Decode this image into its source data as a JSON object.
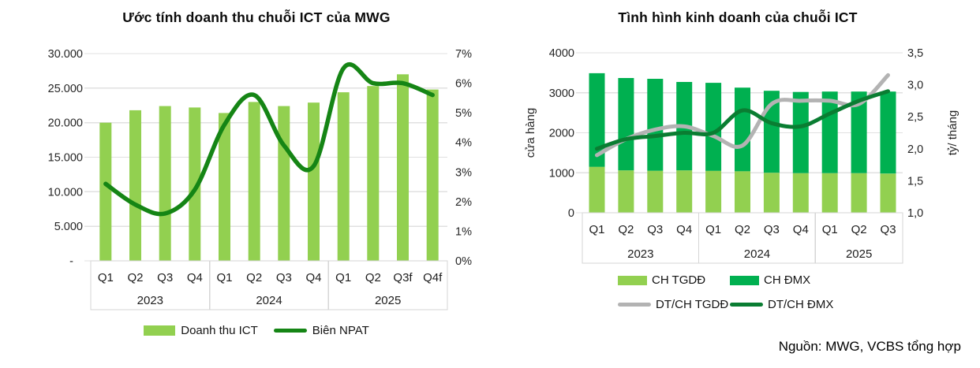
{
  "page": {
    "source_note": "Nguồn: MWG, VCBS tổng hợp"
  },
  "colors": {
    "bar_light_green": "#92D050",
    "bar_green": "#00B050",
    "line_dark_green": "#158515",
    "line_forest_green": "#0A7D32",
    "line_gray": "#B3B3B3",
    "grid": "#E0E0E0",
    "strip_border": "#D6D6D6",
    "axis_text": "#262626"
  },
  "chart_data": [
    {
      "type": "bar",
      "title": "Ước tính doanh thu chuỗi ICT của MWG",
      "categories": [
        "Q1",
        "Q2",
        "Q3",
        "Q4",
        "Q1",
        "Q2",
        "Q3",
        "Q4",
        "Q1",
        "Q2",
        "Q3f",
        "Q4f"
      ],
      "year_groups": [
        {
          "label": "2023",
          "count": 4
        },
        {
          "label": "2024",
          "count": 4
        },
        {
          "label": "2025",
          "count": 4
        }
      ],
      "series": [
        {
          "name": "Doanh thu ICT",
          "type": "bar",
          "axis": "left",
          "color_key": "bar_light_green",
          "values": [
            20000,
            21800,
            22400,
            22200,
            21400,
            23000,
            22400,
            22900,
            24400,
            25300,
            27000,
            24800
          ]
        },
        {
          "name": "Biên NPAT",
          "type": "line",
          "axis": "right",
          "color_key": "line_dark_green",
          "values": [
            2.6,
            1.9,
            1.6,
            2.4,
            4.6,
            5.6,
            3.9,
            3.2,
            6.5,
            6.0,
            6.0,
            5.6
          ]
        }
      ],
      "y_left": {
        "min": 0,
        "max": 30000,
        "step": 5000,
        "tick_labels": [
          "-",
          "5.000",
          "10.000",
          "15.000",
          "20.000",
          "25.000",
          "30.000"
        ]
      },
      "y_right": {
        "min": 0,
        "max": 7,
        "step": 1,
        "tick_labels": [
          "0%",
          "1%",
          "2%",
          "3%",
          "4%",
          "5%",
          "6%",
          "7%"
        ]
      },
      "ylabel_left": "",
      "ylabel_right": "",
      "legend_position": "bottom",
      "grid": true
    },
    {
      "type": "stacked-bar",
      "title": "Tình hình kinh doanh của chuỗi ICT",
      "categories": [
        "Q1",
        "Q2",
        "Q3",
        "Q4",
        "Q1",
        "Q2",
        "Q3",
        "Q4",
        "Q1",
        "Q2",
        "Q3"
      ],
      "year_groups": [
        {
          "label": "2023",
          "count": 4
        },
        {
          "label": "2024",
          "count": 4
        },
        {
          "label": "2025",
          "count": 3
        }
      ],
      "series": [
        {
          "name": "CH TGDĐ",
          "type": "bar",
          "stack": true,
          "axis": "left",
          "color_key": "bar_light_green",
          "values": [
            1150,
            1060,
            1050,
            1060,
            1050,
            1040,
            1000,
            990,
            990,
            990,
            980
          ]
        },
        {
          "name": "CH ĐMX",
          "type": "bar",
          "stack": true,
          "axis": "left",
          "color_key": "bar_green",
          "values": [
            2340,
            2310,
            2300,
            2210,
            2200,
            2090,
            2050,
            2030,
            2040,
            2040,
            2050
          ]
        },
        {
          "name": "DT/CH TGDĐ",
          "type": "line",
          "axis": "right",
          "color_key": "line_gray",
          "values": [
            1.9,
            2.15,
            2.3,
            2.35,
            2.2,
            2.05,
            2.7,
            2.75,
            2.75,
            2.7,
            3.15
          ]
        },
        {
          "name": "DT/CH ĐMX",
          "type": "line",
          "axis": "right",
          "color_key": "line_forest_green",
          "values": [
            2.0,
            2.15,
            2.2,
            2.25,
            2.25,
            2.6,
            2.4,
            2.35,
            2.55,
            2.75,
            2.9
          ]
        }
      ],
      "y_left": {
        "min": 0,
        "max": 4000,
        "step": 1000,
        "tick_labels": [
          "0",
          "1000",
          "2000",
          "3000",
          "4000"
        ]
      },
      "y_right": {
        "min": 1.0,
        "max": 3.5,
        "step": 0.5,
        "tick_labels": [
          "1,0",
          "1,5",
          "2,0",
          "2,5",
          "3,0",
          "3,5"
        ]
      },
      "ylabel_left": "cửa hàng",
      "ylabel_right": "tỷ/ tháng",
      "legend_position": "bottom",
      "grid": true
    }
  ]
}
